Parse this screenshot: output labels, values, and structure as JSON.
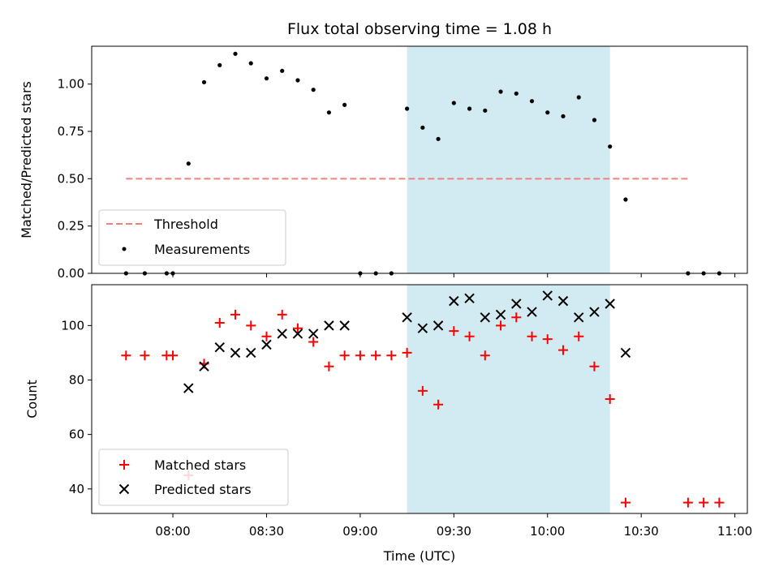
{
  "chart_data": [
    {
      "type": "scatter",
      "title": "Flux total observing time = 1.08 h",
      "xlabel": "",
      "ylabel": "Matched/Predicted stars",
      "ylim": [
        0,
        1.2
      ],
      "yticks": [
        0.0,
        0.25,
        0.5,
        0.75,
        1.0
      ],
      "ytick_labels": [
        "0.00",
        "0.25",
        "0.50",
        "0.75",
        "1.00"
      ],
      "shaded_region": {
        "x_start": "09:15",
        "x_end": "10:20",
        "color": "#add8e6"
      },
      "threshold": {
        "name": "Threshold",
        "value": 0.5,
        "x_start": "07:45",
        "x_end": "10:45",
        "color": "#f08080",
        "style": "dashed"
      },
      "series": [
        {
          "name": "Measurements",
          "marker": "dot",
          "color": "#000000",
          "x": [
            "07:45",
            "07:51",
            "07:58",
            "08:00",
            "08:05",
            "08:10",
            "08:15",
            "08:20",
            "08:25",
            "08:30",
            "08:35",
            "08:40",
            "08:45",
            "08:50",
            "08:55",
            "09:00",
            "09:05",
            "09:10",
            "09:15",
            "09:20",
            "09:25",
            "09:30",
            "09:35",
            "09:40",
            "09:45",
            "09:50",
            "09:55",
            "10:00",
            "10:05",
            "10:10",
            "10:15",
            "10:20",
            "10:25",
            "10:45",
            "10:50",
            "10:55"
          ],
          "y": [
            0.0,
            0.0,
            0.0,
            0.0,
            0.58,
            1.01,
            1.1,
            1.16,
            1.11,
            1.03,
            1.07,
            1.02,
            0.97,
            0.85,
            0.89,
            0.0,
            0.0,
            0.0,
            0.87,
            0.77,
            0.71,
            0.9,
            0.87,
            0.86,
            0.96,
            0.95,
            0.91,
            0.85,
            0.83,
            0.93,
            0.81,
            0.67,
            0.39,
            0.0,
            0.0,
            0.0
          ]
        }
      ],
      "legend": {
        "position": "lower-left"
      }
    },
    {
      "type": "scatter",
      "title": "",
      "xlabel": "Time (UTC)",
      "ylabel": "Count",
      "ylim": [
        31,
        115
      ],
      "yticks": [
        40,
        60,
        80,
        100
      ],
      "ytick_labels": [
        "40",
        "60",
        "80",
        "100"
      ],
      "xlim": [
        "07:34",
        "11:04"
      ],
      "xticks": [
        "08:00",
        "08:30",
        "09:00",
        "09:30",
        "10:00",
        "10:30",
        "11:00"
      ],
      "shaded_region": {
        "x_start": "09:15",
        "x_end": "10:20",
        "color": "#add8e6"
      },
      "series": [
        {
          "name": "Matched stars",
          "marker": "plus",
          "color": "#ff0000",
          "x": [
            "07:45",
            "07:51",
            "07:58",
            "08:00",
            "08:05",
            "08:10",
            "08:15",
            "08:20",
            "08:25",
            "08:30",
            "08:35",
            "08:40",
            "08:45",
            "08:50",
            "08:55",
            "09:00",
            "09:05",
            "09:10",
            "09:15",
            "09:20",
            "09:25",
            "09:30",
            "09:35",
            "09:40",
            "09:45",
            "09:50",
            "09:55",
            "10:00",
            "10:05",
            "10:10",
            "10:15",
            "10:20",
            "10:25",
            "10:45",
            "10:50",
            "10:55"
          ],
          "y": [
            89,
            89,
            89,
            89,
            45,
            86,
            101,
            104,
            100,
            96,
            104,
            99,
            94,
            85,
            89,
            89,
            89,
            89,
            90,
            76,
            71,
            98,
            96,
            89,
            100,
            103,
            96,
            95,
            91,
            96,
            85,
            73,
            35,
            35,
            35,
            35
          ]
        },
        {
          "name": "Predicted stars",
          "marker": "x",
          "color": "#000000",
          "x": [
            "08:05",
            "08:10",
            "08:15",
            "08:20",
            "08:25",
            "08:30",
            "08:35",
            "08:40",
            "08:45",
            "08:50",
            "08:55",
            "09:15",
            "09:20",
            "09:25",
            "09:30",
            "09:35",
            "09:40",
            "09:45",
            "09:50",
            "09:55",
            "10:00",
            "10:05",
            "10:10",
            "10:15",
            "10:20",
            "10:25"
          ],
          "y": [
            77,
            85,
            92,
            90,
            90,
            93,
            97,
            97,
            97,
            100,
            100,
            103,
            99,
            100,
            109,
            110,
            103,
            104,
            108,
            105,
            111,
            109,
            103,
            105,
            108,
            90
          ]
        }
      ],
      "legend": {
        "position": "lower-left"
      }
    }
  ]
}
